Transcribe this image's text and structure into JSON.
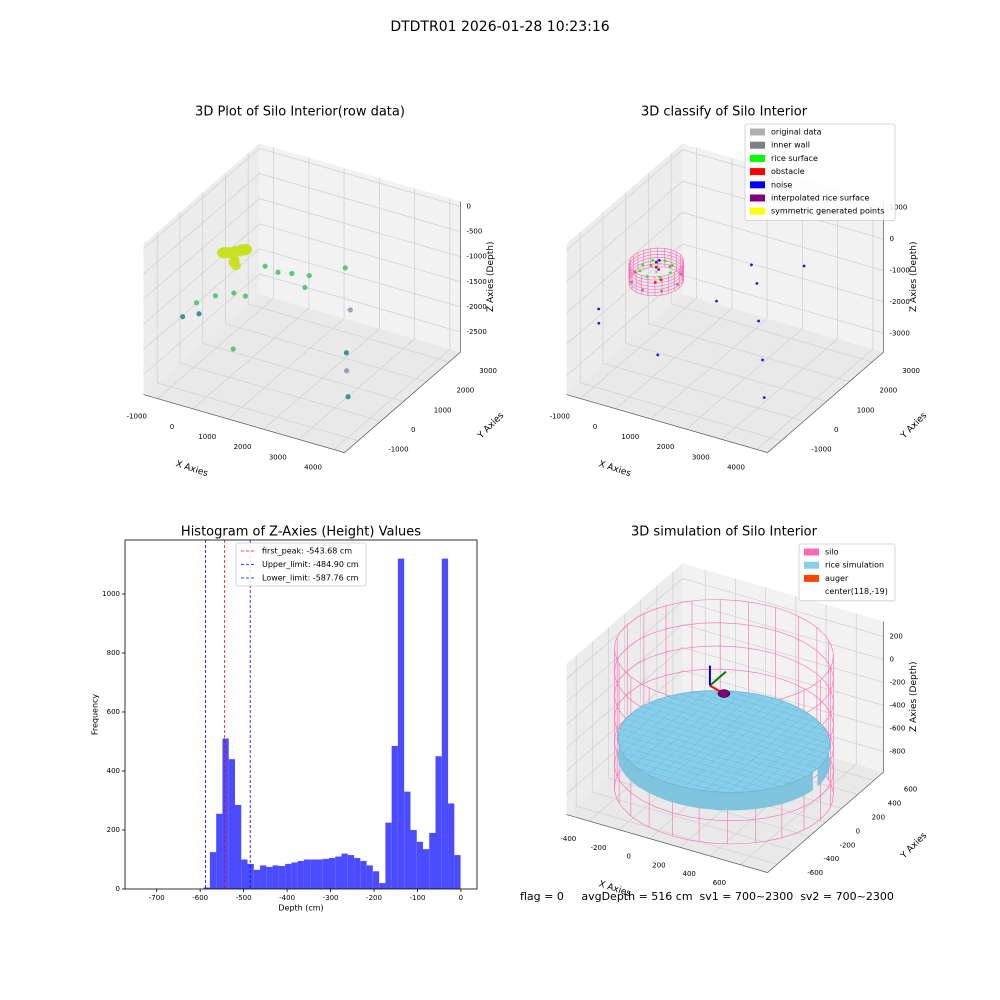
{
  "title": "DTDTR01 2026-01-28 10:23:16",
  "footer": "flag = 0     avgDepth = 516 cm  sv1 = 700~2300  sv2 = 700~2300",
  "chart_data": [
    {
      "type": "scatter3d",
      "title": "3D Plot of Silo Interior(row data)",
      "xlabel": "X Axies",
      "ylabel": "Y Axies",
      "zlabel": "Z Axies (Depth)",
      "xlim": [
        -1400,
        4300
      ],
      "ylim": [
        -1600,
        3500
      ],
      "zlim": [
        -2900,
        100
      ],
      "xticks": [
        -1000,
        0,
        1000,
        2000,
        3000,
        4000
      ],
      "yticks": [
        -1000,
        0,
        1000,
        2000,
        3000
      ],
      "zticks": [
        0,
        -500,
        -1000,
        -1500,
        -2000,
        -2500
      ],
      "series": [
        {
          "color": "#c9e020",
          "x": [
            0,
            -40,
            -150,
            -300,
            -450,
            -560,
            -600,
            -560,
            -450,
            -300,
            -150,
            -40,
            -300,
            -200,
            -400
          ],
          "y": [
            700,
            850,
            960,
            1000,
            960,
            850,
            700,
            550,
            440,
            400,
            440,
            550,
            700,
            600,
            800
          ],
          "z": [
            -650,
            -700,
            -750,
            -800,
            -850,
            -850,
            -800,
            -750,
            -700,
            -650,
            -600,
            -620,
            -900,
            -950,
            -1000
          ]
        },
        {
          "color": "#4ec36b",
          "x": [
            500,
            800,
            1000,
            1300,
            -800,
            0,
            200,
            1500,
            -200,
            2000,
            500
          ],
          "y": [
            800,
            900,
            1200,
            1500,
            -200,
            200,
            400,
            1000,
            -300,
            2000,
            -600
          ],
          "z": [
            -900,
            -1000,
            -1100,
            -1200,
            -1500,
            -1300,
            -1400,
            -1200,
            -1200,
            -1100,
            -2000
          ]
        },
        {
          "color": "#2a8c8c",
          "x": [
            -1000,
            -600,
            3000,
            3500
          ],
          "y": [
            -500,
            -400,
            500,
            -200
          ],
          "z": [
            -1700,
            -1600,
            -2000,
            -2500
          ]
        },
        {
          "color": "#9a96b4",
          "x": [
            3200,
            2400
          ],
          "y": [
            200,
            1600
          ],
          "z": [
            -2200,
            -1700
          ]
        }
      ]
    },
    {
      "type": "scatter3d",
      "title": "3D classify of Silo Interior",
      "xlabel": "X Axies",
      "ylabel": "Y Axies",
      "zlabel": "Z Axies (Depth)",
      "xlim": [
        -1400,
        4300
      ],
      "ylim": [
        -1600,
        3500
      ],
      "zlim": [
        -3600,
        1200
      ],
      "xticks": [
        -1000,
        0,
        1000,
        2000,
        3000,
        4000
      ],
      "yticks": [
        -1000,
        0,
        1000,
        2000,
        3000
      ],
      "zticks": [
        1000,
        0,
        -1000,
        -2000,
        -3000
      ],
      "silo": {
        "center": [
          -500,
          950
        ],
        "radius": 650,
        "zlim": [
          -1300,
          -700
        ],
        "color": "#ff69b4"
      },
      "legend": "upper right",
      "series": [
        {
          "name": "original data",
          "color": "#b0b0b0",
          "x": [
            -500
          ],
          "y": [
            950
          ],
          "z": [
            -1000
          ]
        },
        {
          "name": "inner wall",
          "color": "#808080",
          "x": [
            100,
            -500,
            -1100,
            -500,
            -75,
            -925,
            -925,
            -75
          ],
          "y": [
            950,
            1550,
            950,
            350,
            1375,
            525,
            1375,
            525
          ],
          "z": [
            -1200,
            -1200,
            -1200,
            -1200,
            -1200,
            -1200,
            -1200,
            -1200
          ]
        },
        {
          "name": "rice surface",
          "color": "#00ff00",
          "x": [
            -100,
            -500,
            -900,
            -500,
            -220,
            -780,
            -780,
            -220
          ],
          "y": [
            950,
            1350,
            950,
            550,
            1230,
            670,
            1230,
            670
          ],
          "z": [
            -900,
            -900,
            -900,
            -900,
            -880,
            -880,
            -900,
            -900
          ]
        },
        {
          "name": "obstacle",
          "color": "#ff0000",
          "x": [
            -200,
            -300
          ],
          "y": [
            700,
            600
          ],
          "z": [
            -1000,
            -1050
          ]
        },
        {
          "name": "noise",
          "color": "#0000ff",
          "x": [
            -500,
            -450,
            1500,
            2000,
            2500,
            -1200,
            -1000,
            800,
            3000,
            3500,
            1200,
            2500
          ],
          "y": [
            950,
            1000,
            500,
            1500,
            800,
            -500,
            -800,
            -1000,
            200,
            -500,
            2500,
            2800
          ],
          "z": [
            -700,
            -650,
            -1000,
            -900,
            -1500,
            -1500,
            -1700,
            -2000,
            -2200,
            -2800,
            -1200,
            -1000
          ]
        },
        {
          "name": "interpolated rice surface",
          "color": "#800080",
          "x": [
            -500,
            -400
          ],
          "y": [
            950,
            900
          ],
          "z": [
            -850,
            -860
          ]
        },
        {
          "name": "symmetric generated points",
          "color": "#ffff00",
          "x": [
            -600
          ],
          "y": [
            1100
          ],
          "z": [
            -900
          ]
        }
      ]
    },
    {
      "type": "histogram",
      "title": "Histogram of Z-Axies (Height) Values",
      "xlabel": "Depth (cm)",
      "ylabel": "Frequency",
      "color": "#4b4bff",
      "xlim": [
        -773,
        37
      ],
      "ylim": [
        0,
        1183
      ],
      "xticks": [
        -700,
        -600,
        -500,
        -400,
        -300,
        -200,
        -100,
        0
      ],
      "yticks": [
        0,
        200,
        400,
        600,
        800,
        1000
      ],
      "bins": [
        -592.0,
        -577.6,
        -563.2,
        -548.7,
        -534.3,
        -519.9,
        -505.5,
        -491.1,
        -476.6,
        -462.2,
        -447.8,
        -433.4,
        -419.0,
        -404.5,
        -390.1,
        -375.7,
        -361.3,
        -346.9,
        -332.4,
        -318.0,
        -303.6,
        -289.2,
        -274.8,
        -260.3,
        -245.9,
        -231.5,
        -217.1,
        -202.7,
        -188.2,
        -173.8,
        -159.4,
        -145.0,
        -130.6,
        -116.1,
        -101.7,
        -87.3,
        -72.9,
        -58.5,
        -44.0,
        -29.6,
        -15.2,
        -0.8
      ],
      "values": [
        5,
        125,
        255,
        510,
        440,
        285,
        100,
        85,
        65,
        80,
        75,
        80,
        78,
        85,
        90,
        95,
        100,
        100,
        100,
        102,
        105,
        110,
        120,
        115,
        105,
        95,
        80,
        60,
        20,
        225,
        485,
        1120,
        330,
        200,
        160,
        135,
        190,
        450,
        1120,
        290,
        115
      ],
      "lines": [
        {
          "value": -543.68,
          "label": "first_peak: -543.68 cm",
          "color": "#ff0000"
        },
        {
          "value": -484.9,
          "label": "Upper_limit: -484.90 cm",
          "color": "#0000ff"
        },
        {
          "value": -587.76,
          "label": "Lower_limit: -587.76 cm",
          "color": "#0000ff"
        }
      ],
      "legend": "upper center"
    },
    {
      "type": "simulation3d",
      "title": "3D simulation of Silo Interior",
      "xlabel": "X Axies",
      "ylabel": "Y Axies",
      "zlabel": "Z Axies (Depth)",
      "xlim": [
        -550,
        780
      ],
      "ylim": [
        -720,
        720
      ],
      "zlim": [
        -980,
        330
      ],
      "xticks": [
        -400,
        -200,
        0,
        200,
        400,
        600
      ],
      "yticks": [
        -600,
        -400,
        -200,
        0,
        200,
        400,
        600
      ],
      "zticks": [
        200,
        0,
        -200,
        -400,
        -600,
        -800
      ],
      "silo": {
        "center": [
          118,
          -19
        ],
        "radius": 640,
        "zlim": [
          -950,
          260
        ],
        "color": "#ff69b4"
      },
      "rice": {
        "center": [
          118,
          -19
        ],
        "radius": 620,
        "z": -516,
        "color": "#87ceeb"
      },
      "auger": {
        "x": 118,
        "y": -19,
        "z": -100,
        "color": "#800080"
      },
      "legend": "upper right",
      "series": [
        {
          "name": "silo",
          "color": "#ff69b4"
        },
        {
          "name": "rice simulation",
          "color": "#87ceeb"
        },
        {
          "name": "auger",
          "color": "#ff4500"
        },
        {
          "name": "center(118,-19)"
        }
      ]
    }
  ]
}
